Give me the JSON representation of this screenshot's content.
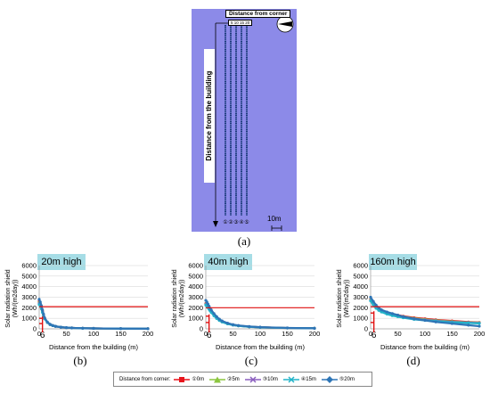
{
  "diagram": {
    "corner_label": "Distance from corner",
    "corner_ticks": "5 10 15 20",
    "vertical_label": "Distance from the building",
    "line_markers": [
      "①",
      "②",
      "③",
      "④",
      "⑤"
    ],
    "scale_label": "10m",
    "caption": "(a)",
    "colors": {
      "background": "#8c8ae8",
      "line": "#1a3a7a"
    }
  },
  "legend": {
    "title": "Distance from corner:",
    "items": [
      {
        "label": "①0m",
        "color": "#e8141c",
        "marker": "square"
      },
      {
        "label": "②5m",
        "color": "#8cc63f",
        "marker": "triangle"
      },
      {
        "label": "③10m",
        "color": "#8b5fbf",
        "marker": "x"
      },
      {
        "label": "④15m",
        "color": "#22b3c8",
        "marker": "x"
      },
      {
        "label": "⑤20m",
        "color": "#2e75b6",
        "marker": "diamond"
      }
    ]
  },
  "chart_data": [
    {
      "type": "line",
      "panel_title": "20m high",
      "caption": "(b)",
      "ylabel": "Solar radiation shield\n(Wh/(m2day))",
      "xlabel": "Distance from the building (m)",
      "xlim": [
        0,
        200
      ],
      "ylim": [
        0,
        6000
      ],
      "xticks": [
        "0",
        "6",
        "50",
        "100",
        "150",
        "200"
      ],
      "yticks": [
        "0",
        "1000",
        "2000",
        "3000",
        "4000",
        "5000",
        "6000"
      ],
      "threshold": 2100,
      "series": [
        {
          "name": "①0m",
          "x": [
            0,
            2,
            4,
            6,
            8,
            10,
            15,
            20,
            25,
            30,
            40,
            50,
            60,
            80,
            100,
            150,
            200
          ],
          "y": [
            2600,
            2400,
            2100,
            1700,
            1300,
            1000,
            600,
            400,
            300,
            230,
            150,
            110,
            90,
            60,
            40,
            20,
            10
          ]
        },
        {
          "name": "②5m",
          "x": [
            0,
            2,
            4,
            6,
            8,
            10,
            15,
            20,
            25,
            30,
            40,
            50,
            60,
            80,
            100,
            150,
            200
          ],
          "y": [
            2500,
            2300,
            2000,
            1650,
            1300,
            1000,
            620,
            420,
            310,
            240,
            160,
            110,
            90,
            60,
            40,
            20,
            10
          ]
        },
        {
          "name": "③10m",
          "x": [
            0,
            2,
            4,
            6,
            8,
            10,
            15,
            20,
            25,
            30,
            40,
            50,
            60,
            80,
            100,
            150,
            200
          ],
          "y": [
            2400,
            2250,
            1950,
            1600,
            1250,
            980,
            610,
            410,
            300,
            230,
            150,
            110,
            85,
            55,
            40,
            20,
            10
          ]
        },
        {
          "name": "④15m",
          "x": [
            0,
            2,
            4,
            6,
            8,
            10,
            15,
            20,
            25,
            30,
            40,
            50,
            60,
            80,
            100,
            150,
            200
          ],
          "y": [
            2300,
            2150,
            1900,
            1550,
            1220,
            950,
            600,
            400,
            300,
            230,
            150,
            110,
            85,
            55,
            40,
            20,
            10
          ]
        },
        {
          "name": "⑤20m",
          "x": [
            0,
            2,
            4,
            6,
            8,
            10,
            15,
            20,
            25,
            30,
            40,
            50,
            60,
            80,
            100,
            150,
            200
          ],
          "y": [
            2800,
            2550,
            2200,
            1800,
            1400,
            1050,
            650,
            430,
            320,
            250,
            160,
            115,
            90,
            60,
            40,
            20,
            10
          ]
        }
      ],
      "red_marks": {
        "x": 6,
        "y_levels": [
          500,
          1000
        ]
      }
    },
    {
      "type": "line",
      "panel_title": "40m high",
      "caption": "(c)",
      "ylabel": "Solar radiation shield\n(Wh/(m2day))",
      "xlabel": "Distance from the building (m)",
      "xlim": [
        0,
        200
      ],
      "ylim": [
        0,
        6000
      ],
      "xticks": [
        "0",
        "6",
        "50",
        "100",
        "150",
        "200"
      ],
      "yticks": [
        "0",
        "1000",
        "2000",
        "3000",
        "4000",
        "5000",
        "6000"
      ],
      "threshold": 2000,
      "series": [
        {
          "name": "①0m",
          "x": [
            0,
            2,
            4,
            6,
            8,
            10,
            15,
            20,
            25,
            30,
            40,
            50,
            60,
            80,
            100,
            150,
            200
          ],
          "y": [
            2400,
            2300,
            2150,
            2000,
            1850,
            1700,
            1350,
            1050,
            850,
            700,
            500,
            380,
            300,
            200,
            150,
            80,
            50
          ]
        },
        {
          "name": "②5m",
          "x": [
            0,
            2,
            4,
            6,
            8,
            10,
            15,
            20,
            25,
            30,
            40,
            50,
            60,
            80,
            100,
            150,
            200
          ],
          "y": [
            2350,
            2250,
            2100,
            1950,
            1800,
            1650,
            1300,
            1020,
            830,
            680,
            490,
            370,
            290,
            200,
            150,
            80,
            50
          ]
        },
        {
          "name": "③10m",
          "x": [
            0,
            2,
            4,
            6,
            8,
            10,
            15,
            20,
            25,
            30,
            40,
            50,
            60,
            80,
            100,
            150,
            200
          ],
          "y": [
            2300,
            2200,
            2050,
            1900,
            1750,
            1600,
            1270,
            1000,
            810,
            660,
            480,
            360,
            285,
            195,
            145,
            80,
            50
          ]
        },
        {
          "name": "④15m",
          "x": [
            0,
            2,
            4,
            6,
            8,
            10,
            15,
            20,
            25,
            30,
            40,
            50,
            60,
            80,
            100,
            150,
            200
          ],
          "y": [
            2250,
            2150,
            2000,
            1850,
            1700,
            1550,
            1240,
            980,
            790,
            650,
            470,
            355,
            280,
            190,
            140,
            80,
            50
          ]
        },
        {
          "name": "⑤20m",
          "x": [
            0,
            2,
            4,
            6,
            8,
            10,
            15,
            20,
            25,
            30,
            40,
            50,
            60,
            80,
            100,
            150,
            200
          ],
          "y": [
            2700,
            2550,
            2350,
            2150,
            1950,
            1800,
            1450,
            1150,
            920,
            750,
            540,
            400,
            320,
            220,
            160,
            90,
            50
          ]
        }
      ],
      "red_marks": {
        "x": 6,
        "y_levels": [
          600,
          1200
        ]
      }
    },
    {
      "type": "line",
      "panel_title": "160m high",
      "caption": "(d)",
      "ylabel": "Solar radiation shield\n(Wh/(m2day))",
      "xlabel": "Distance from the building (m)",
      "xlim": [
        0,
        200
      ],
      "ylim": [
        0,
        6000
      ],
      "xticks": [
        "0",
        "6",
        "50",
        "100",
        "150",
        "200"
      ],
      "yticks": [
        "0",
        "1000",
        "2000",
        "3000",
        "4000",
        "5000",
        "6000"
      ],
      "threshold": 2100,
      "series": [
        {
          "name": "①0m",
          "x": [
            0,
            5,
            10,
            15,
            20,
            30,
            40,
            50,
            60,
            80,
            100,
            120,
            150,
            180,
            200
          ],
          "y": [
            2800,
            2400,
            2100,
            1900,
            1750,
            1550,
            1400,
            1300,
            1200,
            1050,
            950,
            850,
            750,
            650,
            600
          ]
        },
        {
          "name": "②5m",
          "x": [
            0,
            5,
            10,
            15,
            20,
            30,
            40,
            50,
            60,
            80,
            100,
            120,
            150,
            180,
            200
          ],
          "y": [
            2750,
            2350,
            2050,
            1850,
            1700,
            1500,
            1350,
            1250,
            1150,
            1000,
            900,
            800,
            700,
            620,
            580
          ]
        },
        {
          "name": "③10m",
          "x": [
            0,
            5,
            10,
            15,
            20,
            30,
            40,
            50,
            60,
            80,
            100,
            120,
            150,
            180,
            200
          ],
          "y": [
            2700,
            2300,
            2000,
            1800,
            1650,
            1450,
            1300,
            1200,
            1100,
            950,
            850,
            760,
            660,
            590,
            550
          ]
        },
        {
          "name": "④15m",
          "x": [
            0,
            5,
            10,
            15,
            20,
            30,
            40,
            50,
            60,
            80,
            100,
            120,
            150,
            180,
            200
          ],
          "y": [
            2650,
            2250,
            1950,
            1750,
            1600,
            1400,
            1250,
            1150,
            1050,
            900,
            800,
            720,
            620,
            560,
            520
          ]
        },
        {
          "name": "⑤20m",
          "x": [
            0,
            5,
            10,
            15,
            20,
            30,
            40,
            50,
            60,
            80,
            100,
            120,
            150,
            180,
            200
          ],
          "y": [
            3000,
            2600,
            2250,
            2000,
            1800,
            1600,
            1450,
            1300,
            1150,
            950,
            800,
            650,
            500,
            350,
            250
          ]
        }
      ],
      "red_marks": {
        "x": 6,
        "y_levels": [
          600,
          1500
        ]
      }
    }
  ]
}
